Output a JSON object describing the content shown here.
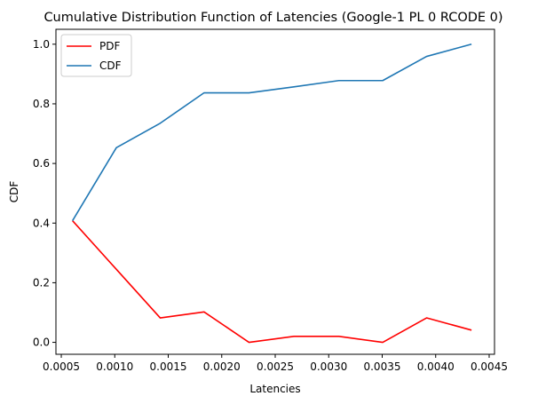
{
  "chart_data": {
    "type": "line",
    "title": "Cumulative Distribution Function of Latencies (Google-1 PL 0 RCODE 0)",
    "xlabel": "Latencies",
    "ylabel": "CDF",
    "xlim": [
      0.00045,
      0.00455
    ],
    "ylim": [
      -0.04,
      1.05
    ],
    "x_ticks": [
      0.0005,
      0.001,
      0.0015,
      0.002,
      0.0025,
      0.003,
      0.0035,
      0.004,
      0.0045
    ],
    "x_tick_labels": [
      "0.0005",
      "0.0010",
      "0.0015",
      "0.0020",
      "0.0025",
      "0.0030",
      "0.0035",
      "0.0040",
      "0.0045"
    ],
    "y_ticks": [
      0.0,
      0.2,
      0.4,
      0.6,
      0.8,
      1.0
    ],
    "y_tick_labels": [
      "0.0",
      "0.2",
      "0.4",
      "0.6",
      "0.8",
      "1.0"
    ],
    "grid": false,
    "legend_position": "top-left",
    "x": [
      0.000605,
      0.001015,
      0.001425,
      0.001835,
      0.002255,
      0.002675,
      0.003095,
      0.003505,
      0.003915,
      0.004335
    ],
    "series": [
      {
        "name": "PDF",
        "color": "#ff0000",
        "values": [
          0.408,
          0.245,
          0.082,
          0.102,
          0.0,
          0.02,
          0.02,
          0.0,
          0.082,
          0.041
        ]
      },
      {
        "name": "CDF",
        "color": "#1f77b4",
        "values": [
          0.408,
          0.653,
          0.735,
          0.837,
          0.837,
          0.857,
          0.878,
          0.878,
          0.959,
          1.0
        ]
      }
    ]
  }
}
